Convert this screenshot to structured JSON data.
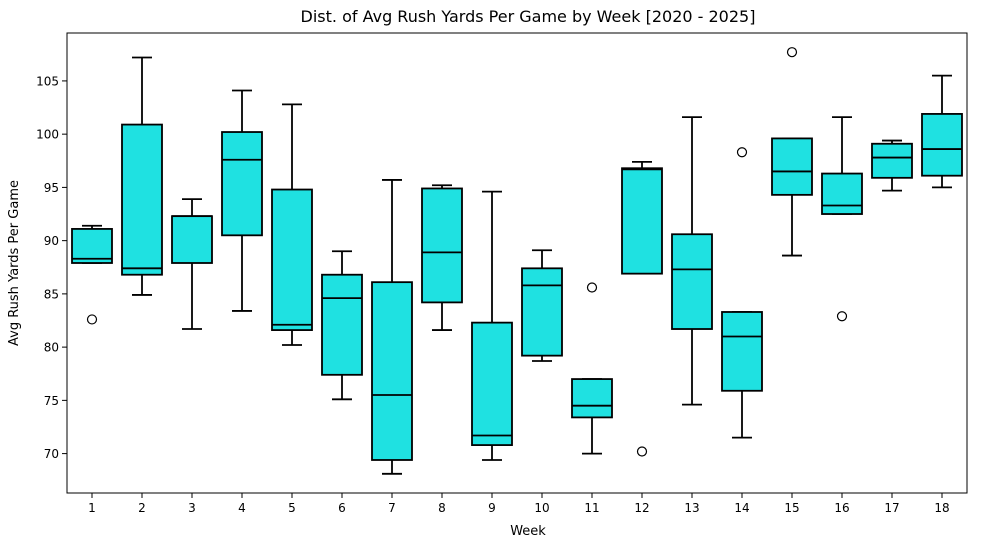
{
  "chart_data": {
    "type": "box",
    "title": "Dist. of Avg Rush Yards Per Game by Week [2020 - 2025]",
    "xlabel": "Week",
    "ylabel": "Avg Rush Yards Per Game",
    "ylim": [
      66.3,
      109.5
    ],
    "yticks": [
      70,
      75,
      80,
      85,
      90,
      95,
      100,
      105
    ],
    "grid": false,
    "box_color": "#1FE1E1",
    "edge_color": "#000000",
    "categories": [
      "1",
      "2",
      "3",
      "4",
      "5",
      "6",
      "7",
      "8",
      "9",
      "10",
      "11",
      "12",
      "13",
      "14",
      "15",
      "16",
      "17",
      "18"
    ],
    "boxes": [
      {
        "week": "1",
        "whislo": 87.9,
        "q1": 87.9,
        "med": 88.3,
        "q3": 91.1,
        "whishi": 91.4,
        "fliers": [
          82.6
        ]
      },
      {
        "week": "2",
        "whislo": 84.9,
        "q1": 86.8,
        "med": 87.4,
        "q3": 100.9,
        "whishi": 107.2,
        "fliers": []
      },
      {
        "week": "3",
        "whislo": 81.7,
        "q1": 87.9,
        "med": 92.3,
        "q3": 92.3,
        "whishi": 93.9,
        "fliers": []
      },
      {
        "week": "4",
        "whislo": 83.4,
        "q1": 90.5,
        "med": 97.6,
        "q3": 100.2,
        "whishi": 104.1,
        "fliers": []
      },
      {
        "week": "5",
        "whislo": 80.2,
        "q1": 81.6,
        "med": 82.1,
        "q3": 94.8,
        "whishi": 102.8,
        "fliers": []
      },
      {
        "week": "6",
        "whislo": 75.1,
        "q1": 77.4,
        "med": 84.6,
        "q3": 86.8,
        "whishi": 89.0,
        "fliers": []
      },
      {
        "week": "7",
        "whislo": 68.1,
        "q1": 69.4,
        "med": 75.5,
        "q3": 86.1,
        "whishi": 95.7,
        "fliers": []
      },
      {
        "week": "8",
        "whislo": 81.6,
        "q1": 84.2,
        "med": 88.9,
        "q3": 94.9,
        "whishi": 95.2,
        "fliers": []
      },
      {
        "week": "9",
        "whislo": 69.4,
        "q1": 70.8,
        "med": 71.7,
        "q3": 82.3,
        "whishi": 94.6,
        "fliers": []
      },
      {
        "week": "10",
        "whislo": 78.7,
        "q1": 79.2,
        "med": 85.8,
        "q3": 87.4,
        "whishi": 89.1,
        "fliers": []
      },
      {
        "week": "11",
        "whislo": 70.0,
        "q1": 73.4,
        "med": 74.5,
        "q3": 77.0,
        "whishi": 77.0,
        "fliers": [
          85.6
        ]
      },
      {
        "week": "12",
        "whislo": 86.9,
        "q1": 86.9,
        "med": 96.7,
        "q3": 96.8,
        "whishi": 97.4,
        "fliers": [
          70.2
        ]
      },
      {
        "week": "13",
        "whislo": 74.6,
        "q1": 81.7,
        "med": 87.3,
        "q3": 90.6,
        "whishi": 101.6,
        "fliers": []
      },
      {
        "week": "14",
        "whislo": 71.5,
        "q1": 75.9,
        "med": 81.0,
        "q3": 83.3,
        "whishi": 83.3,
        "fliers": [
          98.3
        ]
      },
      {
        "week": "15",
        "whislo": 88.6,
        "q1": 94.3,
        "med": 96.5,
        "q3": 99.6,
        "whishi": 99.6,
        "fliers": [
          107.7
        ]
      },
      {
        "week": "16",
        "whislo": 92.5,
        "q1": 92.5,
        "med": 93.3,
        "q3": 96.3,
        "whishi": 101.6,
        "fliers": [
          82.9
        ]
      },
      {
        "week": "17",
        "whislo": 94.7,
        "q1": 95.9,
        "med": 97.8,
        "q3": 99.1,
        "whishi": 99.4,
        "fliers": []
      },
      {
        "week": "18",
        "whislo": 95.0,
        "q1": 96.1,
        "med": 98.6,
        "q3": 101.9,
        "whishi": 105.5,
        "fliers": []
      }
    ]
  }
}
